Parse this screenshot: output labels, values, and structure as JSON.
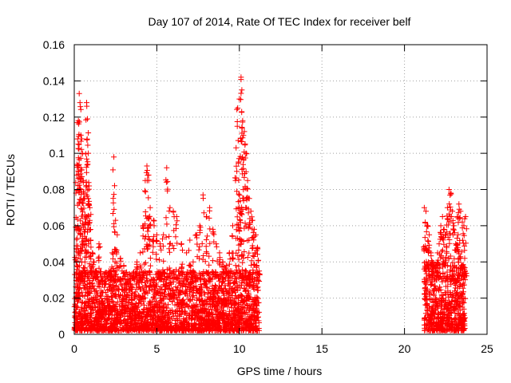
{
  "chart_data": {
    "type": "scatter",
    "title": "Day 107 of 2014, Rate Of TEC Index for receiver belf",
    "xlabel": "GPS time / hours",
    "ylabel": "ROTI / TECUs",
    "xlim": [
      0,
      25
    ],
    "ylim": [
      0,
      0.16
    ],
    "xticks": [
      0,
      5,
      10,
      15,
      20,
      25
    ],
    "xtick_labels": [
      "0",
      "5",
      "10",
      "15",
      "20",
      "25"
    ],
    "yticks": [
      0,
      0.02,
      0.04,
      0.06,
      0.08,
      0.1,
      0.12,
      0.14,
      0.16
    ],
    "ytick_labels": [
      "0",
      "0.02",
      "0.04",
      "0.06",
      "0.08",
      "0.1",
      "0.12",
      "0.14",
      "0.16"
    ],
    "grid": true,
    "marker": "+",
    "color": "#ff0000",
    "series": [
      {
        "name": "ROTI",
        "points": [
          [
            0.05,
            0.012
          ],
          [
            0.1,
            0.078
          ],
          [
            0.15,
            0.088
          ],
          [
            0.2,
            0.117
          ],
          [
            0.25,
            0.118
          ],
          [
            0.3,
            0.133
          ],
          [
            0.35,
            0.128
          ],
          [
            0.4,
            0.11
          ],
          [
            0.45,
            0.108
          ],
          [
            0.5,
            0.1
          ],
          [
            0.55,
            0.085
          ],
          [
            0.6,
            0.075
          ],
          [
            0.65,
            0.066
          ],
          [
            0.7,
            0.062
          ],
          [
            0.75,
            0.128
          ],
          [
            0.8,
            0.119
          ],
          [
            0.85,
            0.1
          ],
          [
            0.9,
            0.082
          ],
          [
            0.95,
            0.07
          ],
          [
            1.0,
            0.052
          ],
          [
            1.1,
            0.045
          ],
          [
            1.2,
            0.04
          ],
          [
            1.3,
            0.035
          ],
          [
            1.5,
            0.05
          ],
          [
            1.7,
            0.03
          ],
          [
            1.9,
            0.028
          ],
          [
            2.1,
            0.035
          ],
          [
            2.3,
            0.045
          ],
          [
            2.4,
            0.098
          ],
          [
            2.5,
            0.063
          ],
          [
            2.6,
            0.055
          ],
          [
            2.8,
            0.042
          ],
          [
            3.0,
            0.038
          ],
          [
            3.2,
            0.03
          ],
          [
            3.4,
            0.025
          ],
          [
            3.6,
            0.032
          ],
          [
            3.8,
            0.04
          ],
          [
            4.0,
            0.045
          ],
          [
            4.2,
            0.06
          ],
          [
            4.3,
            0.085
          ],
          [
            4.4,
            0.093
          ],
          [
            4.5,
            0.088
          ],
          [
            4.6,
            0.07
          ],
          [
            4.8,
            0.063
          ],
          [
            5.0,
            0.055
          ],
          [
            5.2,
            0.05
          ],
          [
            5.4,
            0.055
          ],
          [
            5.6,
            0.092
          ],
          [
            5.8,
            0.07
          ],
          [
            6.0,
            0.068
          ],
          [
            6.2,
            0.065
          ],
          [
            6.5,
            0.05
          ],
          [
            6.8,
            0.045
          ],
          [
            7.0,
            0.052
          ],
          [
            7.2,
            0.04
          ],
          [
            7.4,
            0.055
          ],
          [
            7.6,
            0.06
          ],
          [
            7.8,
            0.077
          ],
          [
            8.0,
            0.065
          ],
          [
            8.2,
            0.07
          ],
          [
            8.4,
            0.058
          ],
          [
            8.6,
            0.05
          ],
          [
            8.8,
            0.045
          ],
          [
            9.0,
            0.04
          ],
          [
            9.2,
            0.038
          ],
          [
            9.4,
            0.045
          ],
          [
            9.6,
            0.06
          ],
          [
            9.8,
            0.103
          ],
          [
            9.9,
            0.125
          ],
          [
            10.0,
            0.13
          ],
          [
            10.1,
            0.142
          ],
          [
            10.15,
            0.135
          ],
          [
            10.2,
            0.118
          ],
          [
            10.3,
            0.112
          ],
          [
            10.4,
            0.1
          ],
          [
            10.5,
            0.085
          ],
          [
            10.6,
            0.075
          ],
          [
            10.7,
            0.068
          ],
          [
            10.8,
            0.063
          ],
          [
            10.9,
            0.058
          ],
          [
            11.0,
            0.055
          ],
          [
            11.1,
            0.048
          ],
          [
            11.2,
            0.035
          ],
          [
            21.2,
            0.07
          ],
          [
            21.3,
            0.068
          ],
          [
            21.4,
            0.06
          ],
          [
            21.5,
            0.055
          ],
          [
            21.6,
            0.045
          ],
          [
            21.7,
            0.04
          ],
          [
            21.8,
            0.03
          ],
          [
            21.9,
            0.035
          ],
          [
            22.0,
            0.045
          ],
          [
            22.1,
            0.05
          ],
          [
            22.2,
            0.06
          ],
          [
            22.3,
            0.065
          ],
          [
            22.4,
            0.058
          ],
          [
            22.5,
            0.055
          ],
          [
            22.6,
            0.07
          ],
          [
            22.7,
            0.08
          ],
          [
            22.8,
            0.078
          ],
          [
            22.9,
            0.068
          ],
          [
            23.0,
            0.06
          ],
          [
            23.1,
            0.05
          ],
          [
            23.2,
            0.065
          ],
          [
            23.3,
            0.072
          ],
          [
            23.4,
            0.068
          ],
          [
            23.5,
            0.062
          ],
          [
            23.6,
            0.06
          ],
          [
            23.7,
            0.065
          ]
        ]
      }
    ],
    "dense_band": {
      "description_free": true,
      "segments": [
        {
          "x_start": 0.0,
          "x_end": 11.2,
          "y_low": 0.002,
          "y_high": 0.035,
          "count": 2600
        },
        {
          "x_start": 21.2,
          "x_end": 23.7,
          "y_low": 0.002,
          "y_high": 0.04,
          "count": 600
        }
      ]
    }
  }
}
